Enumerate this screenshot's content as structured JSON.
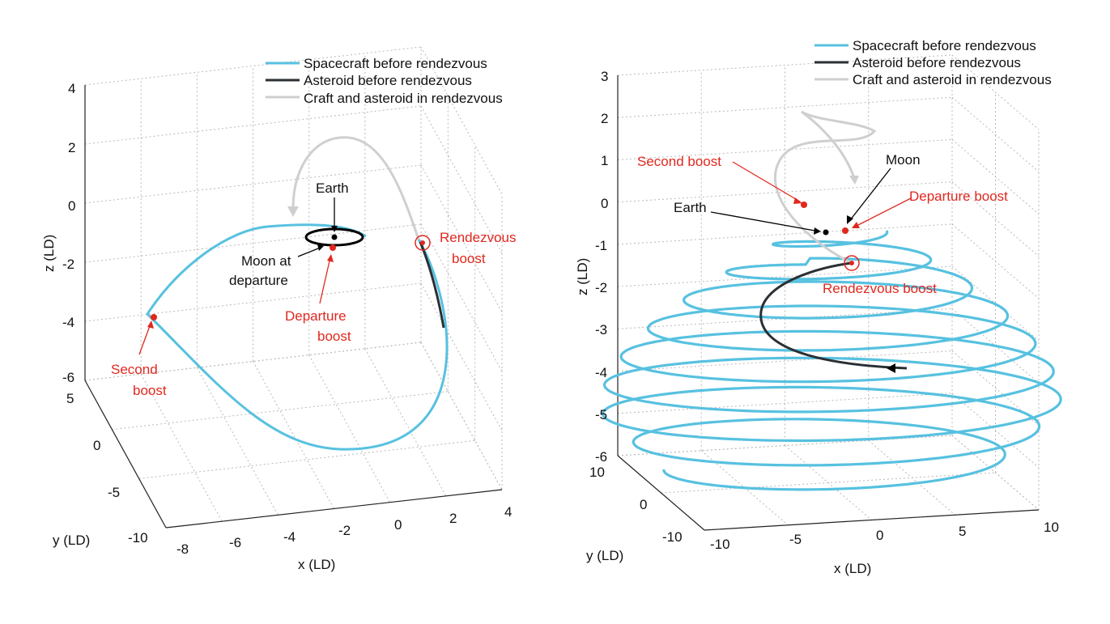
{
  "colors": {
    "spacecraft": "#57c1e0",
    "asteroid": "#2a2f33",
    "rendezvous": "#cfcfcf",
    "marker": "#e0281e",
    "earth": "#000000"
  },
  "chart_data": [
    {
      "type": "line3d",
      "legend": [
        {
          "label": "Spacecraft before rendezvous",
          "color": "#57c1e0"
        },
        {
          "label": "Asteroid before rendezvous",
          "color": "#2a2f33"
        },
        {
          "label": "Craft and asteroid in rendezvous",
          "color": "#cfcfcf"
        }
      ],
      "xlabel": "x (LD)",
      "ylabel": "y (LD)",
      "zlabel": "z (LD)",
      "xticks": [
        "-8",
        "-6",
        "-4",
        "-2",
        "0",
        "2",
        "4"
      ],
      "yticks": [
        "5",
        "0",
        "-5",
        "-10"
      ],
      "zticks": [
        "4",
        "2",
        "0",
        "-2",
        "-4",
        "-6"
      ],
      "xlim": [
        -8,
        4
      ],
      "ylim": [
        -10,
        5
      ],
      "zlim": [
        -6,
        4
      ],
      "grid": true,
      "legend_position": "top-right",
      "annotations": [
        {
          "text": "Earth",
          "color": "black"
        },
        {
          "text": "Moon at",
          "color": "black"
        },
        {
          "text": "departure",
          "color": "black"
        },
        {
          "text": "Departure",
          "color": "red"
        },
        {
          "text": "boost",
          "color": "red"
        },
        {
          "text": "Rendezvous",
          "color": "red"
        },
        {
          "text": "boost",
          "color": "red"
        },
        {
          "text": "Second",
          "color": "red"
        },
        {
          "text": "boost",
          "color": "red"
        }
      ]
    },
    {
      "type": "line3d",
      "legend": [
        {
          "label": "Spacecraft before rendezvous",
          "color": "#57c1e0"
        },
        {
          "label": "Asteroid before rendezvous",
          "color": "#2a2f33"
        },
        {
          "label": "Craft and asteroid in rendezvous",
          "color": "#cfcfcf"
        }
      ],
      "xlabel": "x (LD)",
      "ylabel": "y (LD)",
      "zlabel": "z (LD)",
      "xticks": [
        "-10",
        "-5",
        "0",
        "5",
        "10"
      ],
      "yticks": [
        "10",
        "0",
        "-10"
      ],
      "zticks": [
        "3",
        "2",
        "1",
        "0",
        "-1",
        "-2",
        "-3",
        "-4",
        "-5",
        "-6"
      ],
      "xlim": [
        -10,
        10
      ],
      "ylim": [
        -10,
        10
      ],
      "zlim": [
        -6,
        3
      ],
      "grid": true,
      "legend_position": "top-right",
      "annotations": [
        {
          "text": "Second boost",
          "color": "red"
        },
        {
          "text": "Moon",
          "color": "black"
        },
        {
          "text": "Departure boost",
          "color": "red"
        },
        {
          "text": "Earth",
          "color": "black"
        },
        {
          "text": "Rendezvous boost",
          "color": "red"
        }
      ]
    }
  ]
}
